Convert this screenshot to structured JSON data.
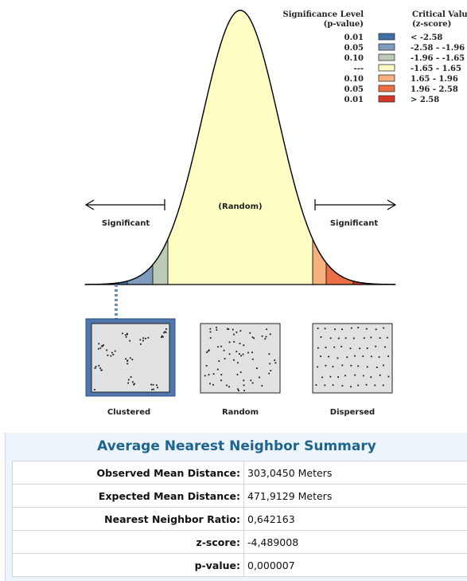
{
  "legend": {
    "col1_header_line1": "Significance Level",
    "col1_header_line2": "(p-value)",
    "col2_header_line1": "Critical Value",
    "col2_header_line2": "(z-score)",
    "rows": [
      {
        "p": "0.01",
        "z": "< -2.58",
        "color": "#3e6fa8"
      },
      {
        "p": "0.05",
        "z": "-2.58 - -1.96",
        "color": "#7f9bbd"
      },
      {
        "p": "0.10",
        "z": "-1.96 - -1.65",
        "color": "#bccbb6"
      },
      {
        "p": "---",
        "z": "-1.65 - 1.65",
        "color": "#fdfdc4"
      },
      {
        "p": "0.10",
        "z": "1.65 - 1.96",
        "color": "#f6b07d"
      },
      {
        "p": "0.05",
        "z": "1.96 - 2.58",
        "color": "#ec6e44"
      },
      {
        "p": "0.01",
        "z": "> 2.58",
        "color": "#d43726"
      }
    ]
  },
  "curve": {
    "random_label": "(Random)",
    "left_label": "Significant",
    "right_label": "Significant"
  },
  "patterns": {
    "clustered": "Clustered",
    "random": "Random",
    "dispersed": "Dispersed"
  },
  "summary": {
    "title": "Average Nearest Neighbor Summary",
    "rows": [
      {
        "label": "Observed Mean Distance:",
        "value": "303,0450 Meters"
      },
      {
        "label": "Expected Mean Distance:",
        "value": "471,9129 Meters"
      },
      {
        "label": "Nearest Neighbor Ratio:",
        "value": "0,642163"
      },
      {
        "label": "z-score:",
        "value": "-4,489008"
      },
      {
        "label": "p-value:",
        "value": "0,000007"
      }
    ]
  }
}
